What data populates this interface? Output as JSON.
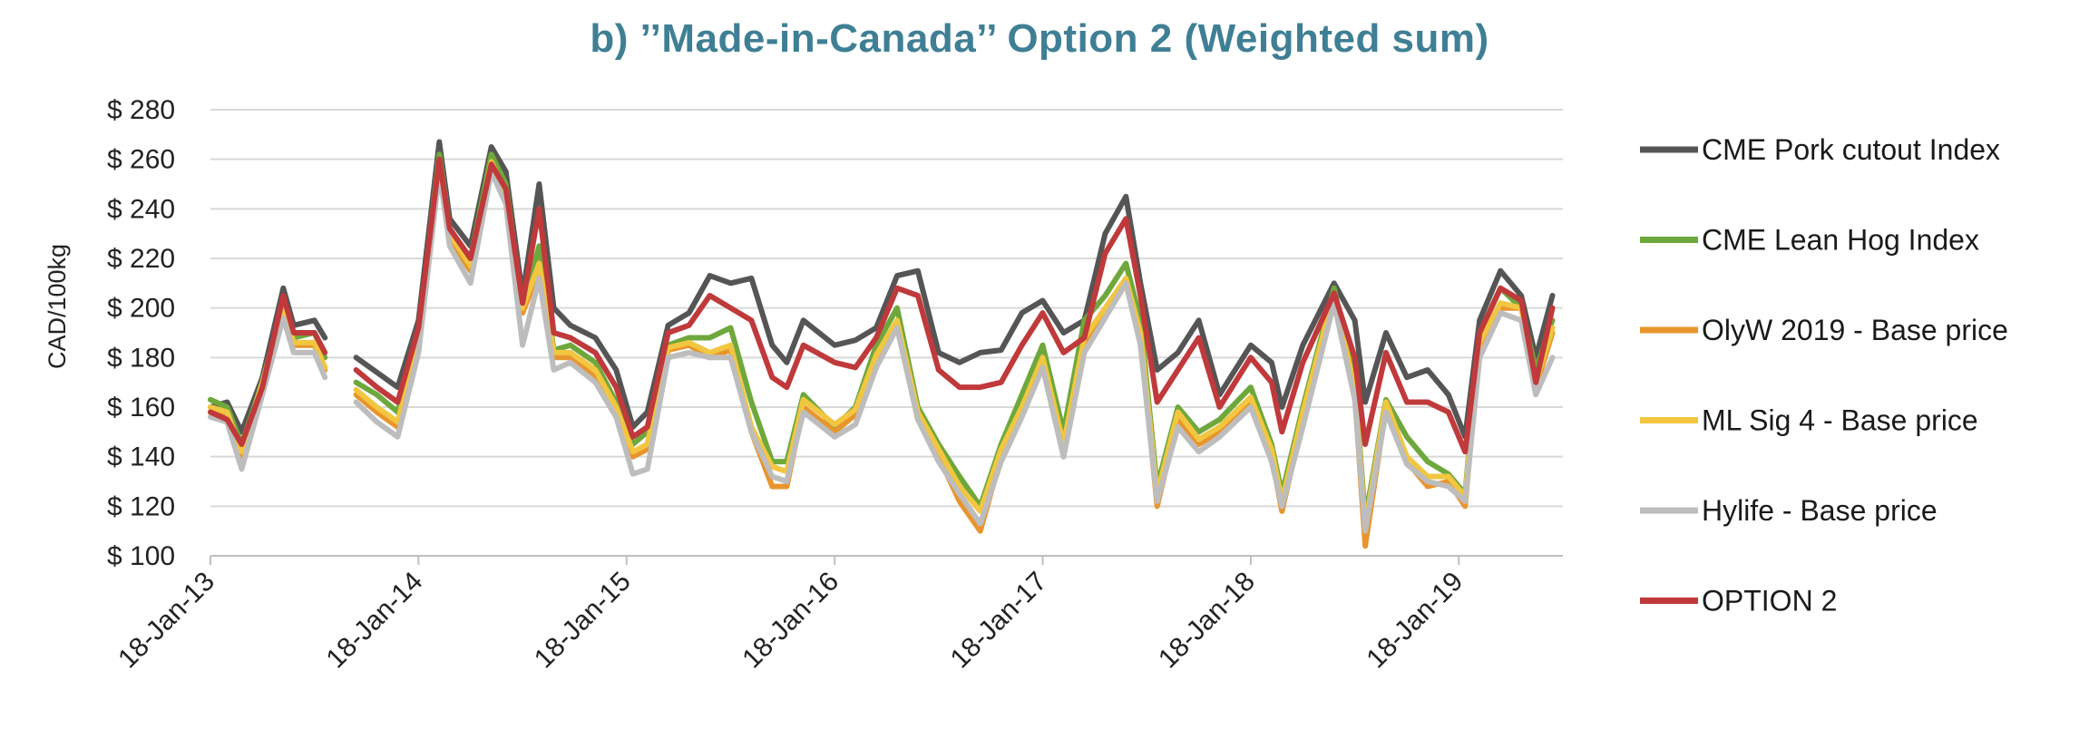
{
  "chart_data": {
    "type": "line",
    "title": "b) ’’Made-in-Canada’’ Option 2 (Weighted sum)",
    "ylabel": "CAD/100kg",
    "xlabel": "",
    "ylim": [
      100,
      280
    ],
    "yticks": [
      "$ 100",
      "$ 120",
      "$ 140",
      "$ 160",
      "$ 180",
      "$ 200",
      "$ 220",
      "$ 240",
      "$ 260",
      "$ 280"
    ],
    "xticks": [
      "18-Jan-13",
      "18-Jan-14",
      "18-Jan-15",
      "18-Jan-16",
      "18-Jan-17",
      "18-Jan-18",
      "18-Jan-19"
    ],
    "grid": "horizontal",
    "legend_position": "right",
    "x": [
      2013.05,
      2013.13,
      2013.2,
      2013.3,
      2013.4,
      2013.45,
      2013.55,
      2013.6,
      2013.7,
      2013.75,
      2013.85,
      2013.95,
      2014.05,
      2014.15,
      2014.2,
      2014.3,
      2014.4,
      2014.47,
      2014.55,
      2014.63,
      2014.7,
      2014.78,
      2014.9,
      2015.0,
      2015.08,
      2015.15,
      2015.25,
      2015.35,
      2015.45,
      2015.55,
      2015.65,
      2015.75,
      2015.82,
      2015.9,
      2016.05,
      2016.15,
      2016.25,
      2016.35,
      2016.45,
      2016.55,
      2016.65,
      2016.75,
      2016.85,
      2016.95,
      2017.05,
      2017.15,
      2017.25,
      2017.35,
      2017.45,
      2017.52,
      2017.6,
      2017.7,
      2017.8,
      2017.9,
      2018.05,
      2018.15,
      2018.2,
      2018.3,
      2018.45,
      2018.55,
      2018.6,
      2018.7,
      2018.8,
      2018.9,
      2019.0,
      2019.08,
      2019.15,
      2019.25,
      2019.35,
      2019.42,
      2019.5
    ],
    "x_range": [
      2013.05,
      2019.55
    ],
    "series": [
      {
        "name": "CME Pork cutout Index",
        "color": "#555555",
        "values": [
          160,
          162,
          150,
          172,
          208,
          193,
          195,
          188,
          null,
          180,
          174,
          168,
          195,
          267,
          236,
          225,
          265,
          255,
          205,
          250,
          200,
          193,
          188,
          175,
          152,
          158,
          193,
          198,
          213,
          210,
          212,
          185,
          178,
          195,
          185,
          187,
          192,
          213,
          215,
          182,
          178,
          182,
          183,
          198,
          203,
          190,
          195,
          230,
          245,
          210,
          175,
          182,
          195,
          165,
          185,
          178,
          160,
          185,
          210,
          195,
          162,
          190,
          172,
          175,
          165,
          148,
          195,
          215,
          205,
          180,
          205
        ]
      },
      {
        "name": "CME Lean Hog Index",
        "color": "#6ea83c",
        "values": [
          163,
          160,
          145,
          170,
          202,
          188,
          190,
          180,
          null,
          170,
          165,
          158,
          190,
          262,
          232,
          220,
          262,
          250,
          200,
          225,
          183,
          185,
          178,
          162,
          145,
          150,
          185,
          188,
          188,
          192,
          162,
          138,
          138,
          165,
          152,
          160,
          185,
          200,
          160,
          145,
          132,
          120,
          145,
          165,
          185,
          150,
          195,
          205,
          218,
          195,
          128,
          160,
          150,
          155,
          168,
          145,
          125,
          160,
          208,
          170,
          115,
          163,
          148,
          138,
          133,
          125,
          190,
          208,
          200,
          175,
          195
        ]
      },
      {
        "name": "OlyW 2019 - Base price",
        "color": "#e8952d",
        "values": [
          158,
          156,
          140,
          168,
          198,
          185,
          185,
          175,
          null,
          165,
          158,
          152,
          185,
          258,
          228,
          215,
          258,
          245,
          198,
          215,
          180,
          180,
          172,
          157,
          140,
          143,
          183,
          185,
          180,
          183,
          150,
          128,
          128,
          160,
          150,
          157,
          178,
          193,
          155,
          140,
          122,
          110,
          140,
          158,
          178,
          140,
          185,
          198,
          210,
          188,
          120,
          155,
          145,
          150,
          162,
          140,
          118,
          155,
          205,
          165,
          104,
          160,
          138,
          128,
          130,
          120,
          185,
          200,
          200,
          168,
          190
        ]
      },
      {
        "name": "ML Sig 4 - Base price",
        "color": "#f2c640",
        "values": [
          160,
          158,
          142,
          170,
          200,
          186,
          186,
          176,
          null,
          167,
          160,
          154,
          187,
          259,
          230,
          217,
          259,
          246,
          200,
          218,
          182,
          182,
          175,
          160,
          142,
          145,
          184,
          186,
          182,
          185,
          152,
          136,
          134,
          163,
          153,
          159,
          181,
          195,
          158,
          143,
          128,
          118,
          143,
          160,
          180,
          145,
          188,
          200,
          212,
          190,
          125,
          158,
          147,
          152,
          164,
          143,
          122,
          158,
          206,
          167,
          112,
          162,
          140,
          132,
          132,
          124,
          186,
          202,
          200,
          170,
          192
        ]
      },
      {
        "name": "Hylife  - Base price",
        "color": "#bdbdbd",
        "values": [
          156,
          154,
          135,
          165,
          196,
          182,
          182,
          172,
          null,
          162,
          154,
          148,
          182,
          255,
          225,
          210,
          255,
          242,
          185,
          212,
          175,
          178,
          170,
          156,
          133,
          135,
          180,
          182,
          180,
          180,
          150,
          132,
          130,
          158,
          148,
          153,
          176,
          192,
          155,
          138,
          125,
          113,
          138,
          156,
          176,
          140,
          182,
          196,
          210,
          185,
          122,
          152,
          142,
          148,
          160,
          138,
          120,
          152,
          202,
          163,
          110,
          158,
          137,
          130,
          128,
          122,
          180,
          198,
          195,
          165,
          180
        ]
      },
      {
        "name": "OPTION 2",
        "color": "#c0393b",
        "values": [
          158,
          155,
          145,
          168,
          205,
          190,
          190,
          182,
          null,
          175,
          168,
          162,
          192,
          260,
          232,
          220,
          258,
          248,
          202,
          240,
          190,
          188,
          182,
          168,
          148,
          152,
          190,
          193,
          205,
          200,
          195,
          172,
          168,
          185,
          178,
          176,
          188,
          208,
          205,
          175,
          168,
          168,
          170,
          185,
          198,
          182,
          188,
          222,
          236,
          205,
          162,
          175,
          188,
          160,
          180,
          170,
          150,
          178,
          206,
          180,
          145,
          182,
          162,
          162,
          158,
          142,
          190,
          208,
          203,
          170,
          200
        ]
      }
    ]
  }
}
